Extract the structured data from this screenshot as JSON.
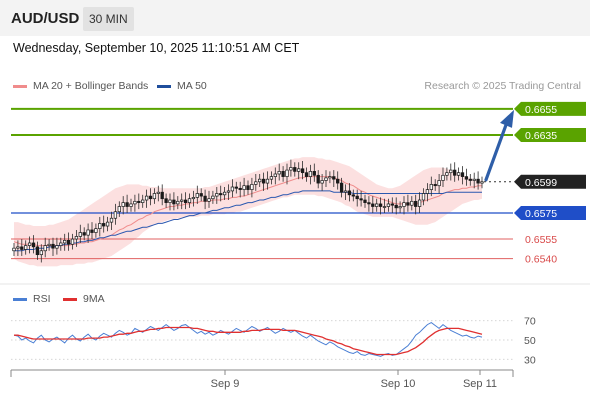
{
  "header": {
    "symbol": "AUD/USD",
    "timeframe": "30 MIN"
  },
  "datetime": "Wednesday, September 10, 2025 11:10:51 AM CET",
  "legend": {
    "ma20": {
      "label": "MA 20 + Bollinger Bands",
      "color": "#f08c8c"
    },
    "ma50": {
      "label": "MA 50",
      "color": "#1f4e9c"
    }
  },
  "copyright": "Research © 2025 Trading Central",
  "rsi_legend": {
    "rsi": {
      "label": "RSI",
      "color": "#4a7fd4"
    },
    "ma9": {
      "label": "9MA",
      "color": "#e03030"
    }
  },
  "chart_data": [
    {
      "type": "candlestick",
      "ylim": [
        0.6522,
        0.6668
      ],
      "x_labels": [
        "Sep 9",
        "Sep 10",
        "Sep 11"
      ],
      "current_price": "0.6599",
      "levels": [
        {
          "value": 0.6655,
          "label": "0.6655",
          "kind": "target",
          "color": "#5aa300"
        },
        {
          "value": 0.6635,
          "label": "0.6635",
          "kind": "target",
          "color": "#5aa300"
        },
        {
          "value": 0.6575,
          "label": "0.6575",
          "kind": "pivot",
          "color": "#1f4ec8"
        },
        {
          "value": 0.6555,
          "label": "0.6555",
          "kind": "support",
          "color": "#e06060"
        },
        {
          "value": 0.654,
          "label": "0.6540",
          "kind": "support",
          "color": "#e06060"
        }
      ],
      "closes": [
        0.6548,
        0.6549,
        0.6547,
        0.655,
        0.6552,
        0.6549,
        0.6543,
        0.6546,
        0.655,
        0.6551,
        0.6548,
        0.655,
        0.6552,
        0.6554,
        0.6551,
        0.6555,
        0.6557,
        0.656,
        0.6558,
        0.6562,
        0.656,
        0.6563,
        0.6567,
        0.6565,
        0.6568,
        0.6571,
        0.6576,
        0.658,
        0.6583,
        0.658,
        0.6582,
        0.6584,
        0.6583,
        0.6585,
        0.6588,
        0.6586,
        0.659,
        0.6591,
        0.6586,
        0.6583,
        0.6585,
        0.6582,
        0.6584,
        0.6585,
        0.6583,
        0.6586,
        0.6587,
        0.659,
        0.6588,
        0.6584,
        0.6586,
        0.6588,
        0.659,
        0.6589,
        0.6591,
        0.6592,
        0.6595,
        0.6594,
        0.6593,
        0.6596,
        0.6593,
        0.6597,
        0.6599,
        0.6601,
        0.6598,
        0.6601,
        0.6603,
        0.6605,
        0.6607,
        0.6603,
        0.6608,
        0.661,
        0.6607,
        0.6609,
        0.6606,
        0.6603,
        0.6607,
        0.6604,
        0.6598,
        0.66,
        0.6602,
        0.6603,
        0.6601,
        0.6598,
        0.6591,
        0.6592,
        0.6589,
        0.6588,
        0.6586,
        0.6585,
        0.6583,
        0.6582,
        0.658,
        0.6582,
        0.658,
        0.658,
        0.6582,
        0.6581,
        0.6579,
        0.658,
        0.6583,
        0.6581,
        0.6584,
        0.658,
        0.6585,
        0.659,
        0.6593,
        0.6597,
        0.6596,
        0.66,
        0.6604,
        0.6606,
        0.6608,
        0.6604,
        0.6606,
        0.6603,
        0.6601,
        0.66,
        0.6601,
        0.6598,
        0.6599
      ],
      "ma20": [
        0.6553,
        0.6552,
        0.6551,
        0.6551,
        0.6551,
        0.6551,
        0.655,
        0.655,
        0.655,
        0.655,
        0.655,
        0.655,
        0.655,
        0.655,
        0.655,
        0.6551,
        0.6551,
        0.6552,
        0.6552,
        0.6553,
        0.6553,
        0.6554,
        0.6555,
        0.6556,
        0.6557,
        0.6558,
        0.656,
        0.6562,
        0.6563,
        0.6565,
        0.6566,
        0.6568,
        0.657,
        0.6571,
        0.6573,
        0.6574,
        0.6576,
        0.6577,
        0.6578,
        0.6579,
        0.658,
        0.658,
        0.6581,
        0.6581,
        0.6582,
        0.6582,
        0.6583,
        0.6583,
        0.6584,
        0.6584,
        0.6584,
        0.6585,
        0.6585,
        0.6585,
        0.6586,
        0.6586,
        0.6587,
        0.6587,
        0.6588,
        0.6588,
        0.6589,
        0.659,
        0.6591,
        0.6592,
        0.6593,
        0.6594,
        0.6595,
        0.6596,
        0.6597,
        0.6598,
        0.6599,
        0.66,
        0.6601,
        0.6602,
        0.6602,
        0.6603,
        0.6603,
        0.6603,
        0.6603,
        0.6603,
        0.6603,
        0.6603,
        0.6602,
        0.6601,
        0.66,
        0.6598,
        0.6597,
        0.6596,
        0.6594,
        0.6592,
        0.6591,
        0.6589,
        0.6588,
        0.6587,
        0.6586,
        0.6585,
        0.6584,
        0.6583,
        0.6582,
        0.6582,
        0.6582,
        0.6582,
        0.6582,
        0.6582,
        0.6583,
        0.6584,
        0.6585,
        0.6586,
        0.6587,
        0.6588,
        0.659,
        0.6591,
        0.6592,
        0.6593,
        0.6593,
        0.6594,
        0.6594,
        0.6595,
        0.6595,
        0.6596,
        0.6596
      ],
      "ma50": [
        0.6546,
        0.6546,
        0.6546,
        0.6547,
        0.6547,
        0.6547,
        0.6548,
        0.6548,
        0.6548,
        0.6549,
        0.6549,
        0.655,
        0.655,
        0.6551,
        0.6551,
        0.6552,
        0.6552,
        0.6553,
        0.6553,
        0.6554,
        0.6554,
        0.6555,
        0.6556,
        0.6556,
        0.6557,
        0.6558,
        0.6558,
        0.6559,
        0.656,
        0.6561,
        0.6561,
        0.6562,
        0.6563,
        0.6564,
        0.6564,
        0.6565,
        0.6566,
        0.6567,
        0.6567,
        0.6568,
        0.6569,
        0.657,
        0.657,
        0.6571,
        0.6572,
        0.6573,
        0.6573,
        0.6574,
        0.6575,
        0.6575,
        0.6576,
        0.6577,
        0.6577,
        0.6578,
        0.6579,
        0.6579,
        0.658,
        0.6581,
        0.6581,
        0.6582,
        0.6583,
        0.6583,
        0.6584,
        0.6585,
        0.6585,
        0.6586,
        0.6587,
        0.6587,
        0.6588,
        0.6589,
        0.6589,
        0.659,
        0.6591,
        0.6591,
        0.6592,
        0.6592,
        0.6592,
        0.6592,
        0.6592,
        0.6592,
        0.6592,
        0.6592,
        0.6591,
        0.6591,
        0.6591,
        0.6591,
        0.6591,
        0.659,
        0.659,
        0.659,
        0.659,
        0.659,
        0.659,
        0.659,
        0.659,
        0.659,
        0.659,
        0.659,
        0.659,
        0.659,
        0.659,
        0.659,
        0.659,
        0.659,
        0.659,
        0.659,
        0.659,
        0.659,
        0.659,
        0.659,
        0.659,
        0.6591,
        0.6591,
        0.6591,
        0.6591,
        0.6591,
        0.6591,
        0.6591,
        0.6591,
        0.6591,
        0.6591
      ],
      "bb_upper": [
        0.6568,
        0.6568,
        0.6567,
        0.6566,
        0.6566,
        0.6565,
        0.6565,
        0.6565,
        0.6565,
        0.6566,
        0.6566,
        0.6567,
        0.6568,
        0.6569,
        0.657,
        0.6572,
        0.6574,
        0.6576,
        0.6578,
        0.658,
        0.6582,
        0.6584,
        0.6586,
        0.6588,
        0.659,
        0.6592,
        0.6594,
        0.6595,
        0.6596,
        0.6597,
        0.6597,
        0.6597,
        0.6597,
        0.6596,
        0.6596,
        0.6595,
        0.6595,
        0.6595,
        0.6594,
        0.6594,
        0.6594,
        0.6594,
        0.6594,
        0.6594,
        0.6594,
        0.6594,
        0.6594,
        0.6594,
        0.6594,
        0.6595,
        0.6595,
        0.6596,
        0.6597,
        0.6598,
        0.6599,
        0.66,
        0.6601,
        0.6602,
        0.6603,
        0.6604,
        0.6605,
        0.6606,
        0.6607,
        0.6608,
        0.6609,
        0.661,
        0.6611,
        0.6612,
        0.6613,
        0.6614,
        0.6615,
        0.6616,
        0.6617,
        0.6617,
        0.6618,
        0.6618,
        0.6618,
        0.6618,
        0.6617,
        0.6617,
        0.6616,
        0.6616,
        0.6615,
        0.6614,
        0.6613,
        0.6612,
        0.6611,
        0.6609,
        0.6607,
        0.6605,
        0.6603,
        0.6601,
        0.6599,
        0.6597,
        0.6596,
        0.6595,
        0.6594,
        0.6594,
        0.6595,
        0.6596,
        0.6598,
        0.66,
        0.6602,
        0.6604,
        0.6606,
        0.6608,
        0.6609,
        0.661,
        0.661,
        0.661,
        0.661,
        0.6609,
        0.6608,
        0.6607,
        0.6605,
        0.6604,
        0.6603,
        0.6602,
        0.6601,
        0.66,
        0.66
      ],
      "bb_lower": [
        0.654,
        0.6538,
        0.6537,
        0.6536,
        0.6535,
        0.6535,
        0.6534,
        0.6534,
        0.6534,
        0.6534,
        0.6534,
        0.6534,
        0.6535,
        0.6535,
        0.6535,
        0.6535,
        0.6536,
        0.6536,
        0.6536,
        0.6537,
        0.6537,
        0.6538,
        0.6539,
        0.654,
        0.6541,
        0.6542,
        0.6544,
        0.6546,
        0.6548,
        0.655,
        0.6552,
        0.6555,
        0.6557,
        0.656,
        0.6562,
        0.6564,
        0.6566,
        0.6567,
        0.6568,
        0.6569,
        0.657,
        0.657,
        0.6571,
        0.6571,
        0.6572,
        0.6572,
        0.6572,
        0.6572,
        0.6573,
        0.6573,
        0.6573,
        0.6574,
        0.6574,
        0.6574,
        0.6574,
        0.6575,
        0.6575,
        0.6576,
        0.6576,
        0.6577,
        0.6578,
        0.6579,
        0.658,
        0.6581,
        0.6582,
        0.6583,
        0.6584,
        0.6585,
        0.6586,
        0.6587,
        0.6587,
        0.6588,
        0.6589,
        0.6589,
        0.6589,
        0.6589,
        0.6589,
        0.6589,
        0.6588,
        0.6588,
        0.6587,
        0.6586,
        0.6585,
        0.6584,
        0.6583,
        0.6581,
        0.658,
        0.6578,
        0.6576,
        0.6575,
        0.6574,
        0.6573,
        0.6572,
        0.6572,
        0.6572,
        0.6572,
        0.6572,
        0.6572,
        0.6571,
        0.657,
        0.6569,
        0.6568,
        0.6567,
        0.6566,
        0.6566,
        0.6566,
        0.6566,
        0.6567,
        0.6568,
        0.657,
        0.6572,
        0.6574,
        0.6576,
        0.6578,
        0.658,
        0.6582,
        0.6583,
        0.6584,
        0.6585,
        0.6585,
        0.6586
      ]
    },
    {
      "type": "line",
      "title": "RSI",
      "ylim": [
        22,
        78
      ],
      "y_ticks": [
        70,
        50,
        30
      ],
      "x_labels": [
        "Sep 9",
        "Sep 10",
        "Sep 11"
      ],
      "series": [
        {
          "name": "RSI",
          "values": [
            55,
            54,
            50,
            52,
            49,
            47,
            52,
            55,
            50,
            48,
            51,
            53,
            50,
            47,
            52,
            55,
            51,
            49,
            53,
            56,
            52,
            50,
            54,
            57,
            55,
            53,
            57,
            60,
            58,
            55,
            57,
            62,
            60,
            58,
            61,
            64,
            62,
            60,
            63,
            66,
            63,
            60,
            62,
            65,
            66,
            63,
            60,
            57,
            59,
            56,
            58,
            55,
            57,
            60,
            58,
            56,
            59,
            62,
            60,
            58,
            61,
            64,
            62,
            59,
            61,
            63,
            60,
            57,
            59,
            62,
            60,
            58,
            60,
            57,
            54,
            52,
            55,
            52,
            49,
            47,
            45,
            48,
            46,
            43,
            41,
            39,
            37,
            36,
            38,
            35,
            34,
            36,
            35,
            34,
            33,
            35,
            36,
            34,
            35,
            38,
            41,
            44,
            49,
            55,
            58,
            62,
            66,
            68,
            65,
            62,
            66,
            63,
            60,
            58,
            56,
            54,
            55,
            53,
            52,
            54,
            53
          ]
        },
        {
          "name": "9MA",
          "values": [
            55,
            55,
            54,
            53,
            52,
            51,
            51,
            51,
            51,
            51,
            51,
            51,
            51,
            51,
            51,
            51,
            51,
            51,
            51,
            52,
            52,
            52,
            52,
            53,
            53,
            54,
            55,
            56,
            56,
            57,
            57,
            58,
            59,
            59,
            60,
            61,
            61,
            62,
            62,
            63,
            63,
            63,
            63,
            63,
            63,
            63,
            62,
            62,
            61,
            60,
            59,
            59,
            58,
            58,
            58,
            58,
            58,
            58,
            58,
            59,
            59,
            60,
            60,
            60,
            61,
            61,
            61,
            61,
            61,
            60,
            60,
            60,
            60,
            59,
            58,
            57,
            56,
            55,
            54,
            53,
            51,
            50,
            49,
            47,
            46,
            44,
            43,
            41,
            40,
            39,
            38,
            37,
            36,
            35,
            35,
            35,
            35,
            35,
            35,
            36,
            37,
            38,
            40,
            42,
            45,
            48,
            52,
            55,
            58,
            60,
            61,
            62,
            62,
            62,
            62,
            61,
            60,
            59,
            58,
            57,
            56
          ]
        }
      ]
    }
  ]
}
